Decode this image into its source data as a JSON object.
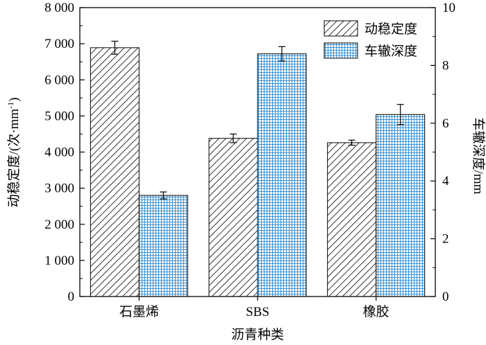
{
  "chart_data": {
    "type": "bar",
    "categories": [
      "石墨烯",
      "SBS",
      "橡胶"
    ],
    "xlabel": "沥青种类",
    "ylabel_left": "动稳定度/(次·mm",
    "ylabel_left_sup": "-1",
    "ylabel_left_tail": ")",
    "ylabel_right": "车辙深度/mm",
    "left_axis": {
      "ylim": [
        0,
        8000
      ],
      "ticks": [
        0,
        1000,
        2000,
        3000,
        4000,
        5000,
        6000,
        7000,
        8000
      ],
      "tick_labels": [
        "0",
        "1 000",
        "2 000",
        "3 000",
        "4 000",
        "5 000",
        "6 000",
        "7 000",
        "8 000"
      ]
    },
    "right_axis": {
      "ylim": [
        0,
        10
      ],
      "ticks": [
        0,
        2,
        4,
        6,
        8,
        10
      ],
      "tick_labels": [
        "0",
        "2",
        "4",
        "6",
        "8",
        "10"
      ]
    },
    "series": [
      {
        "name": "动稳定度",
        "axis": "left",
        "pattern": "diagonal-hatch",
        "values": [
          6890,
          4380,
          4260
        ],
        "errors": [
          180,
          120,
          70
        ]
      },
      {
        "name": "车辙深度",
        "axis": "right",
        "pattern": "blue-grid",
        "color": "#3a8fd0",
        "values": [
          3.5,
          8.4,
          6.3
        ],
        "errors": [
          0.12,
          0.25,
          0.35
        ]
      }
    ],
    "legend_position": "top-right",
    "grid": false
  }
}
